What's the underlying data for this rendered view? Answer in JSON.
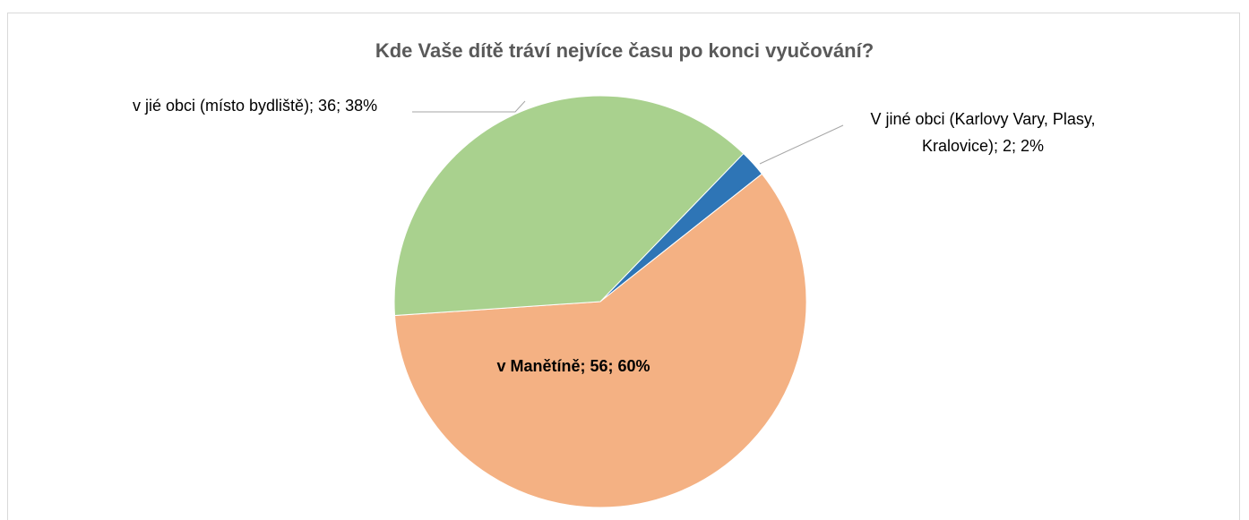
{
  "chart_data": {
    "type": "pie",
    "title": "Kde Vaše dítě tráví nejvíce času po konci vyučování?",
    "categories": [
      "V jiné obci (Karlovy Vary, Plasy, Kralovice)",
      "v Manětíně",
      "v jié obci (místo bydliště)"
    ],
    "values": [
      2,
      56,
      36
    ],
    "value_labels": [
      "V jiné obci (Karlovy Vary, Plasy, Kralovice); 2; 2%",
      "v Manětíně; 56; 60%",
      "v jié obci (místo bydliště); 36; 38%"
    ],
    "colors": [
      "#2e75b6",
      "#f4b183",
      "#a9d18e"
    ]
  }
}
